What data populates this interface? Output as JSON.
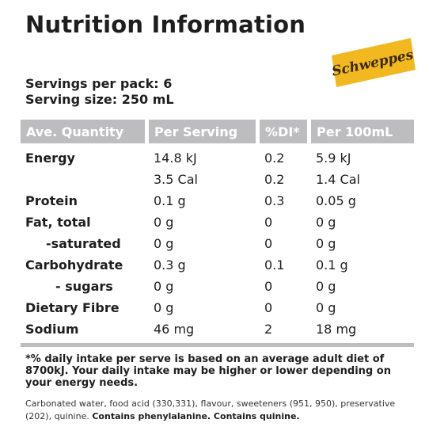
{
  "title": "Nutrition Information",
  "brand": {
    "logo_text": "Schweppes",
    "color": "#f2b820"
  },
  "servings_per_pack": "Servings per pack: 6",
  "serving_size": "Serving size: 250 mL",
  "table": {
    "headers": [
      "Ave. Quantity",
      "Per Serving",
      "%DI*",
      "Per 100mL"
    ],
    "rows": [
      {
        "name": "Energy",
        "per_serving": "14.8 kJ",
        "di": "0.2",
        "per_100ml": "5.9 kJ"
      },
      {
        "name": "",
        "per_serving": "3.5 Cal",
        "di": "0.2",
        "per_100ml": "1.4 Cal"
      },
      {
        "name": "Protein",
        "per_serving": "0.1 g",
        "di": "0.3",
        "per_100ml": "0.05 g"
      },
      {
        "name": "Fat, total",
        "per_serving": "0 g",
        "di": "0",
        "per_100ml": "0 g"
      },
      {
        "name": "-saturated",
        "per_serving": "0 g",
        "di": "0",
        "per_100ml": "0 g"
      },
      {
        "name": "Carbohydrate",
        "per_serving": "0.3 g",
        "di": "0.1",
        "per_100ml": "0.1 g"
      },
      {
        "name": "- sugars",
        "per_serving": "0 g",
        "di": "0",
        "per_100ml": "0 g"
      },
      {
        "name": "Dietary Fibre",
        "per_serving": "0 g",
        "di": "0",
        "per_100ml": "0 g"
      },
      {
        "name": "Sodium",
        "per_serving": "46 mg",
        "di": "2",
        "per_100ml": "18 mg"
      }
    ]
  },
  "footnote": "*% daily intake per serve is based on an average adult diet of 8700kJ. Your daily intake may be higher or lower depending on your energy needs.",
  "ingredients": {
    "text": "Carbonated water, food acid (330,331), flavour, sweeteners (951, 950), preservative (202), quinine.",
    "warning": "Contains phenylalanine. Contains quinine."
  }
}
